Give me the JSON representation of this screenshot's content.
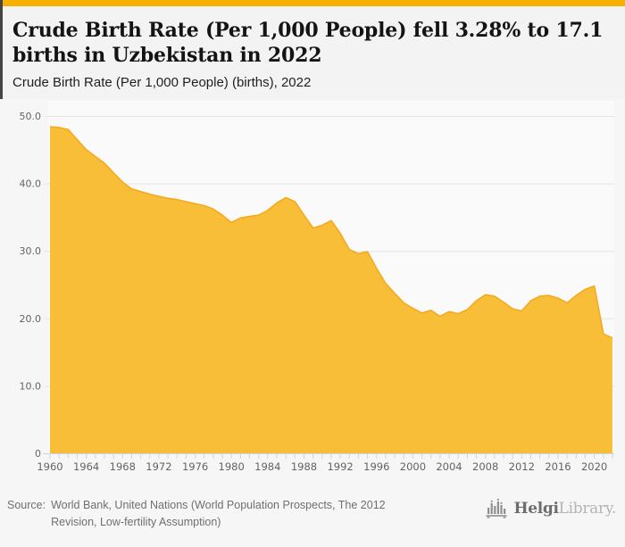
{
  "header": {
    "title": "Crude Birth Rate (Per 1,000 People) fell 3.28% to 17.1 births in Uzbekistan in 2022",
    "subtitle": "Crude Birth Rate (Per 1,000 People) (births), 2022"
  },
  "footer": {
    "source_label": "Source:",
    "source_text": "World Bank, United Nations (World Population Prospects, The 2012 Revision, Low-fertility Assumption)",
    "logo_bold": "Helgi",
    "logo_light": "Library."
  },
  "colors": {
    "accent_bar": "#F8B000",
    "area_fill": "#F9BE37",
    "area_line": "#F3AA20",
    "plot_bg": "#FAFAFA",
    "grid": "#E5E5E5",
    "axis": "#CBD6E2",
    "tick_label": "#636363"
  },
  "chart_data": {
    "type": "area",
    "title": "Crude Birth Rate (Per 1,000 People) (births), 2022",
    "series_name": "Crude Birth Rate (Per 1,000 People)",
    "country": "Uzbekistan",
    "unit": "births per 1,000 people",
    "x_start": 1960,
    "x_end": 2022,
    "values": [
      48.4,
      48.3,
      48.0,
      46.5,
      45.0,
      44.0,
      43.0,
      41.6,
      40.2,
      39.2,
      38.8,
      38.4,
      38.1,
      37.8,
      37.6,
      37.3,
      37.0,
      36.7,
      36.2,
      35.3,
      34.2,
      34.9,
      35.1,
      35.3,
      36.0,
      37.1,
      37.9,
      37.3,
      35.3,
      33.4,
      33.8,
      34.5,
      32.6,
      30.2,
      29.6,
      29.9,
      27.4,
      25.2,
      23.7,
      22.3,
      21.5,
      20.8,
      21.2,
      20.3,
      21.0,
      20.7,
      21.3,
      22.6,
      23.5,
      23.3,
      22.4,
      21.4,
      21.1,
      22.6,
      23.3,
      23.4,
      23.0,
      22.3,
      23.4,
      24.3,
      24.8,
      17.7,
      17.1
    ],
    "ylim": [
      0,
      50
    ],
    "yticks": [
      0,
      10,
      20,
      30,
      40,
      50
    ],
    "ytick_labels": [
      "0",
      "10.0",
      "20.0",
      "30.0",
      "40.0",
      "50.0"
    ],
    "xlabels_every_years": 4,
    "xticks_every_years": 1,
    "grid": true,
    "legend": "none",
    "last_value": 17.1,
    "change_pct": -3.28
  }
}
